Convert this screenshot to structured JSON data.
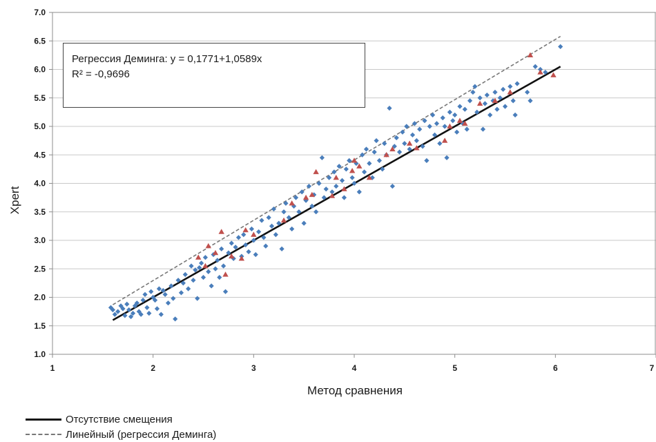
{
  "chart_data": {
    "type": "scatter",
    "xlabel": "Метод сравнения",
    "ylabel": "Xpert",
    "xlim": [
      1,
      7
    ],
    "ylim": [
      1.0,
      7.0
    ],
    "x_ticks": [
      "1",
      "2",
      "3",
      "4",
      "5",
      "6",
      "7"
    ],
    "y_ticks": [
      "1.0",
      "1.5",
      "2.0",
      "2.5",
      "3.0",
      "3.5",
      "4.0",
      "4.5",
      "5.0",
      "5.5",
      "6.0",
      "6.5",
      "7.0"
    ],
    "grid": "horizontal",
    "annotation": {
      "line1": "Регрессия Деминга: y = 0,1771+1,0589x",
      "line2": "R² = -0,9696"
    },
    "lines": [
      {
        "name": "Отсутствие смещения",
        "style": "solid",
        "color": "#111111",
        "x": [
          1.6,
          6.05
        ],
        "y": [
          1.6,
          6.05
        ]
      },
      {
        "name": "Линейный (регрессия Деминга)",
        "style": "dashed",
        "color": "#777777",
        "x": [
          1.6,
          6.05
        ],
        "y": [
          1.87,
          6.58
        ]
      }
    ],
    "series": [
      {
        "marker": "diamond",
        "color": "#4a7ebb",
        "points": [
          [
            1.58,
            1.82
          ],
          [
            1.6,
            1.78
          ],
          [
            1.62,
            1.7
          ],
          [
            1.65,
            1.75
          ],
          [
            1.68,
            1.85
          ],
          [
            1.7,
            1.8
          ],
          [
            1.72,
            1.68
          ],
          [
            1.74,
            1.88
          ],
          [
            1.76,
            1.78
          ],
          [
            1.78,
            1.66
          ],
          [
            1.8,
            1.72
          ],
          [
            1.82,
            1.85
          ],
          [
            1.84,
            1.9
          ],
          [
            1.86,
            1.75
          ],
          [
            1.88,
            1.7
          ],
          [
            1.9,
            1.95
          ],
          [
            1.92,
            2.05
          ],
          [
            1.94,
            1.82
          ],
          [
            1.96,
            1.72
          ],
          [
            1.98,
            2.1
          ],
          [
            2.0,
            2.0
          ],
          [
            2.02,
            1.95
          ],
          [
            2.04,
            1.8
          ],
          [
            2.06,
            2.15
          ],
          [
            2.08,
            1.7
          ],
          [
            2.1,
            2.12
          ],
          [
            2.12,
            2.05
          ],
          [
            2.15,
            1.9
          ],
          [
            2.18,
            2.2
          ],
          [
            2.2,
            1.98
          ],
          [
            2.22,
            1.62
          ],
          [
            2.25,
            2.3
          ],
          [
            2.28,
            2.08
          ],
          [
            2.3,
            2.25
          ],
          [
            2.32,
            2.4
          ],
          [
            2.35,
            2.15
          ],
          [
            2.38,
            2.55
          ],
          [
            2.4,
            2.3
          ],
          [
            2.42,
            2.48
          ],
          [
            2.44,
            1.98
          ],
          [
            2.46,
            2.52
          ],
          [
            2.48,
            2.6
          ],
          [
            2.5,
            2.35
          ],
          [
            2.52,
            2.7
          ],
          [
            2.55,
            2.45
          ],
          [
            2.58,
            2.2
          ],
          [
            2.6,
            2.75
          ],
          [
            2.62,
            2.5
          ],
          [
            2.64,
            2.65
          ],
          [
            2.66,
            2.35
          ],
          [
            2.68,
            2.85
          ],
          [
            2.7,
            2.55
          ],
          [
            2.72,
            2.1
          ],
          [
            2.75,
            2.78
          ],
          [
            2.78,
            2.95
          ],
          [
            2.8,
            2.68
          ],
          [
            2.82,
            2.88
          ],
          [
            2.85,
            3.05
          ],
          [
            2.88,
            2.72
          ],
          [
            2.9,
            3.1
          ],
          [
            2.92,
            2.92
          ],
          [
            2.95,
            2.8
          ],
          [
            2.98,
            3.2
          ],
          [
            3.0,
            3.0
          ],
          [
            3.02,
            2.75
          ],
          [
            3.05,
            3.15
          ],
          [
            3.08,
            3.35
          ],
          [
            3.1,
            3.05
          ],
          [
            3.12,
            2.9
          ],
          [
            3.15,
            3.4
          ],
          [
            3.18,
            3.25
          ],
          [
            3.2,
            3.55
          ],
          [
            3.22,
            3.1
          ],
          [
            3.25,
            3.3
          ],
          [
            3.28,
            2.85
          ],
          [
            3.3,
            3.5
          ],
          [
            3.32,
            3.65
          ],
          [
            3.35,
            3.4
          ],
          [
            3.38,
            3.2
          ],
          [
            3.4,
            3.6
          ],
          [
            3.42,
            3.75
          ],
          [
            3.45,
            3.5
          ],
          [
            3.48,
            3.85
          ],
          [
            3.5,
            3.3
          ],
          [
            3.52,
            3.7
          ],
          [
            3.55,
            3.95
          ],
          [
            3.58,
            3.6
          ],
          [
            3.6,
            3.8
          ],
          [
            3.62,
            3.5
          ],
          [
            3.65,
            4.0
          ],
          [
            3.68,
            4.45
          ],
          [
            3.7,
            3.75
          ],
          [
            3.72,
            3.9
          ],
          [
            3.75,
            4.1
          ],
          [
            3.78,
            3.85
          ],
          [
            3.8,
            4.2
          ],
          [
            3.82,
            3.95
          ],
          [
            3.85,
            4.3
          ],
          [
            3.88,
            4.05
          ],
          [
            3.9,
            3.75
          ],
          [
            3.92,
            4.25
          ],
          [
            3.95,
            4.4
          ],
          [
            3.98,
            4.1
          ],
          [
            4.0,
            4.0
          ],
          [
            4.02,
            4.35
          ],
          [
            4.05,
            3.85
          ],
          [
            4.08,
            4.5
          ],
          [
            4.1,
            4.2
          ],
          [
            4.12,
            4.6
          ],
          [
            4.15,
            4.35
          ],
          [
            4.18,
            4.1
          ],
          [
            4.2,
            4.55
          ],
          [
            4.22,
            4.75
          ],
          [
            4.25,
            4.4
          ],
          [
            4.28,
            4.25
          ],
          [
            4.3,
            4.7
          ],
          [
            4.32,
            4.5
          ],
          [
            4.35,
            5.32
          ],
          [
            4.38,
            3.95
          ],
          [
            4.4,
            4.65
          ],
          [
            4.42,
            4.8
          ],
          [
            4.45,
            4.55
          ],
          [
            4.48,
            4.9
          ],
          [
            4.5,
            4.7
          ],
          [
            4.52,
            5.0
          ],
          [
            4.55,
            4.6
          ],
          [
            4.58,
            4.85
          ],
          [
            4.6,
            5.05
          ],
          [
            4.62,
            4.75
          ],
          [
            4.65,
            4.95
          ],
          [
            4.68,
            4.65
          ],
          [
            4.7,
            5.1
          ],
          [
            4.72,
            4.4
          ],
          [
            4.75,
            5.0
          ],
          [
            4.78,
            5.2
          ],
          [
            4.8,
            4.85
          ],
          [
            4.82,
            5.05
          ],
          [
            4.85,
            4.7
          ],
          [
            4.88,
            5.15
          ],
          [
            4.9,
            5.0
          ],
          [
            4.92,
            4.45
          ],
          [
            4.95,
            5.25
          ],
          [
            4.98,
            5.1
          ],
          [
            5.0,
            5.2
          ],
          [
            5.02,
            4.9
          ],
          [
            5.05,
            5.35
          ],
          [
            5.08,
            5.05
          ],
          [
            5.1,
            5.3
          ],
          [
            5.12,
            4.95
          ],
          [
            5.15,
            5.45
          ],
          [
            5.18,
            5.6
          ],
          [
            5.2,
            5.7
          ],
          [
            5.22,
            5.25
          ],
          [
            5.25,
            5.5
          ],
          [
            5.28,
            4.95
          ],
          [
            5.3,
            5.4
          ],
          [
            5.32,
            5.55
          ],
          [
            5.35,
            5.2
          ],
          [
            5.38,
            5.45
          ],
          [
            5.4,
            5.6
          ],
          [
            5.42,
            5.3
          ],
          [
            5.45,
            5.5
          ],
          [
            5.48,
            5.65
          ],
          [
            5.5,
            5.35
          ],
          [
            5.55,
            5.7
          ],
          [
            5.58,
            5.45
          ],
          [
            5.6,
            5.2
          ],
          [
            5.62,
            5.75
          ],
          [
            5.72,
            5.6
          ],
          [
            5.75,
            5.45
          ],
          [
            5.8,
            6.05
          ],
          [
            5.85,
            6.0
          ],
          [
            5.9,
            5.95
          ],
          [
            6.05,
            6.4
          ]
        ]
      },
      {
        "marker": "triangle",
        "color": "#c0504d",
        "points": [
          [
            2.45,
            2.7
          ],
          [
            2.52,
            2.55
          ],
          [
            2.55,
            2.9
          ],
          [
            2.62,
            2.78
          ],
          [
            2.68,
            3.15
          ],
          [
            2.72,
            2.4
          ],
          [
            2.78,
            2.72
          ],
          [
            2.88,
            2.68
          ],
          [
            2.92,
            3.18
          ],
          [
            3.0,
            3.1
          ],
          [
            3.3,
            3.35
          ],
          [
            3.38,
            3.65
          ],
          [
            3.52,
            3.75
          ],
          [
            3.58,
            3.8
          ],
          [
            3.62,
            4.2
          ],
          [
            3.78,
            3.78
          ],
          [
            3.82,
            4.1
          ],
          [
            3.9,
            3.9
          ],
          [
            3.98,
            4.22
          ],
          [
            4.0,
            4.4
          ],
          [
            4.05,
            4.3
          ],
          [
            4.15,
            4.1
          ],
          [
            4.32,
            4.5
          ],
          [
            4.38,
            4.6
          ],
          [
            4.55,
            4.7
          ],
          [
            4.62,
            4.62
          ],
          [
            4.9,
            4.75
          ],
          [
            4.95,
            5.0
          ],
          [
            5.05,
            5.1
          ],
          [
            5.1,
            5.05
          ],
          [
            5.25,
            5.4
          ],
          [
            5.4,
            5.45
          ],
          [
            5.55,
            5.6
          ],
          [
            5.75,
            6.25
          ],
          [
            5.85,
            5.95
          ],
          [
            5.98,
            5.9
          ]
        ]
      }
    ]
  },
  "legend": {
    "solid_label": "Отсутствие смещения",
    "dashed_label": "Линейный (регрессия Деминга)"
  }
}
